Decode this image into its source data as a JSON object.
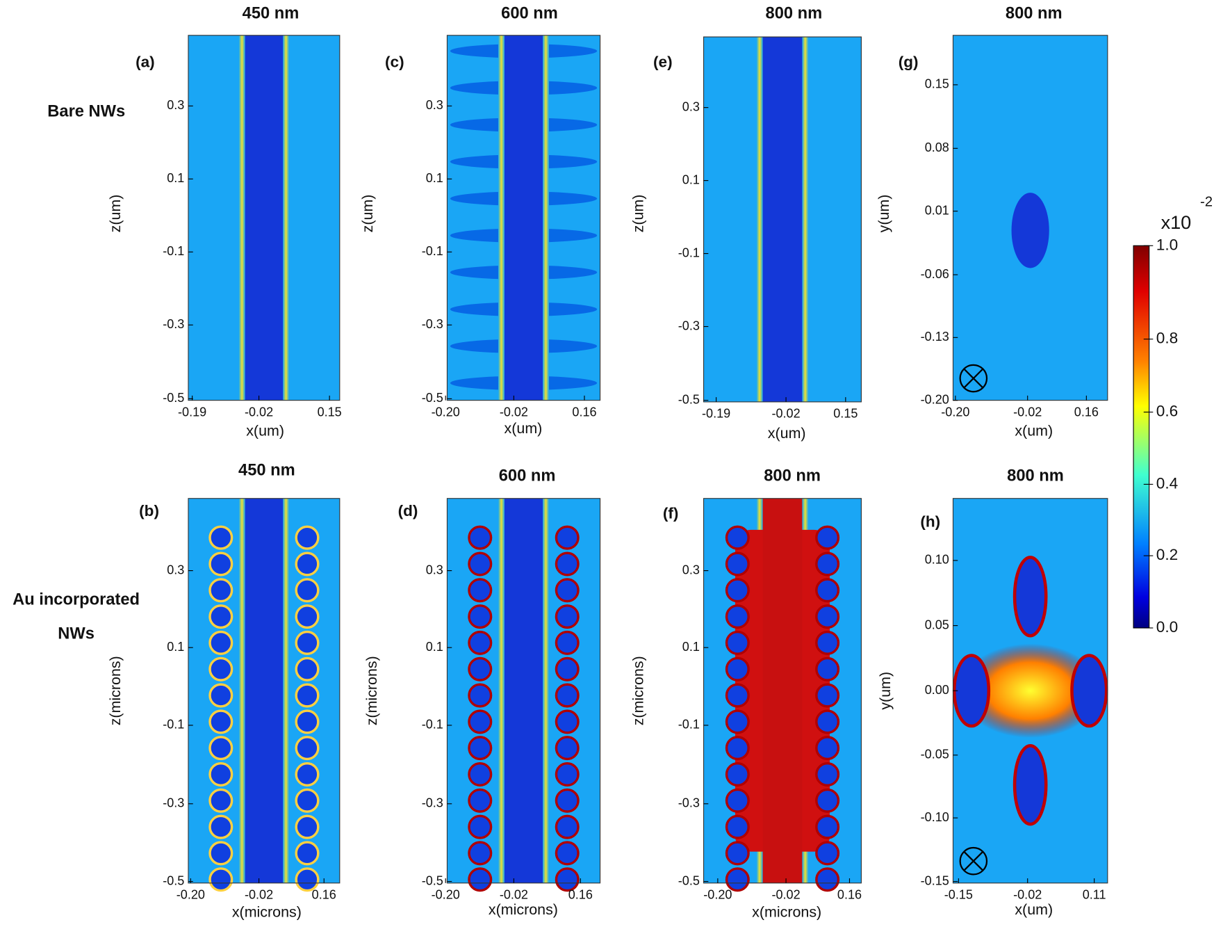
{
  "row_labels": {
    "bare": "Bare NWs",
    "au": [
      "Au incorporated",
      "NWs"
    ]
  },
  "panels": [
    {
      "title": "450 nm",
      "label": "(a)",
      "x_label": "x(um)",
      "y_label": "z(um)",
      "x_ticks": [
        "-0.19",
        "-0.02",
        "0.15"
      ],
      "y_ticks": [
        "0.3",
        "0.1",
        "-0.1",
        "-0.3",
        "-0.5"
      ]
    },
    {
      "title": "600 nm",
      "label": "(c)",
      "x_label": "x(um)",
      "y_label": "z(um)",
      "x_ticks": [
        "-0.20",
        "-0.02",
        "0.16"
      ],
      "y_ticks": [
        "0.3",
        "0.1",
        "-0.1",
        "-0.3",
        "-0.5"
      ]
    },
    {
      "title": "800 nm",
      "label": "(e)",
      "x_label": "x(um)",
      "y_label": "z(um)",
      "x_ticks": [
        "-0.19",
        "-0.02",
        "0.15"
      ],
      "y_ticks": [
        "0.3",
        "0.1",
        "-0.1",
        "-0.3",
        "-0.5"
      ]
    },
    {
      "title": "800 nm",
      "label": "(g)",
      "x_label": "x(um)",
      "y_label": "y(um)",
      "x_ticks": [
        "-0.20",
        "-0.02",
        "0.16"
      ],
      "y_ticks": [
        "0.15",
        "0.08",
        "0.01",
        "-0.06",
        "-0.13",
        "-0.20"
      ]
    },
    {
      "title": "450 nm",
      "label": "(b)",
      "x_label": "x(microns)",
      "y_label": "z(microns)",
      "x_ticks": [
        "-0.20",
        "-0.02",
        "0.16"
      ],
      "y_ticks": [
        "0.3",
        "0.1",
        "-0.1",
        "-0.3",
        "-0.5"
      ]
    },
    {
      "title": "600 nm",
      "label": "(d)",
      "x_label": "x(microns)",
      "y_label": "z(microns)",
      "x_ticks": [
        "-0.20",
        "-0.02",
        "0.16"
      ],
      "y_ticks": [
        "0.3",
        "0.1",
        "-0.1",
        "-0.3",
        "-0.5"
      ]
    },
    {
      "title": "800 nm",
      "label": "(f)",
      "x_label": "x(microns)",
      "y_label": "z(microns)",
      "x_ticks": [
        "-0.20",
        "-0.02",
        "0.16"
      ],
      "y_ticks": [
        "0.3",
        "0.1",
        "-0.1",
        "-0.3",
        "-0.5"
      ]
    },
    {
      "title": "800 nm",
      "label": "(h)",
      "x_label": "x(um)",
      "y_label": "y(um)",
      "x_ticks": [
        "-0.15",
        "-0.02",
        "0.11"
      ],
      "y_ticks": [
        "0.10",
        "0.05",
        "0.00",
        "-0.05",
        "-0.10",
        "-0.15"
      ]
    }
  ],
  "colorbar": {
    "multiplier": "x10",
    "exponent": "-2",
    "ticks": [
      "1.0",
      "0.8",
      "0.6",
      "0.4",
      "0.2",
      "0.0"
    ]
  }
}
